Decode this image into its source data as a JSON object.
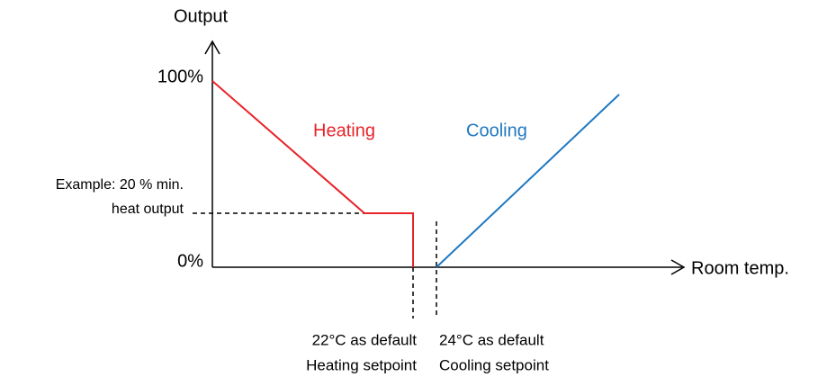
{
  "axis": {
    "y_label": "Output",
    "x_label": "Room temp.",
    "y_top": "100%",
    "y_bottom": "0%"
  },
  "example": {
    "line1": "Example: 20 % min.",
    "line2": "heat output"
  },
  "curves": {
    "heating": "Heating",
    "cooling": "Cooling"
  },
  "setpoints": [
    {
      "default": "22°C as default",
      "name": "Heating setpoint"
    },
    {
      "default": "24°C as default",
      "name": "Cooling setpoint"
    }
  ]
}
